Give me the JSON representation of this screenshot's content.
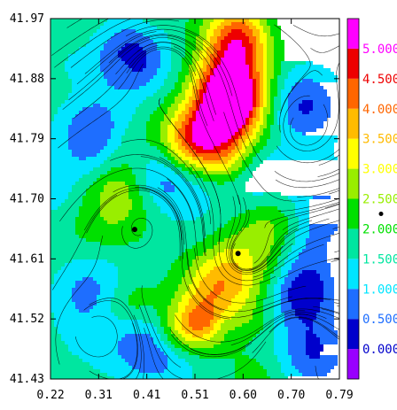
{
  "chart_data": {
    "type": "heatmap",
    "title": "",
    "xlabel": "",
    "ylabel": "",
    "xlim": [
      0.22,
      0.79
    ],
    "ylim": [
      41.43,
      41.97
    ],
    "x_ticks": [
      "0.22",
      "0.31",
      "0.41",
      "0.51",
      "0.60",
      "0.70",
      "0.79"
    ],
    "y_ticks": [
      "41.97",
      "41.88",
      "41.79",
      "41.70",
      "41.61",
      "41.52",
      "41.43"
    ],
    "overlay": "streamlines",
    "colorbar": {
      "range": [
        -0.5,
        5.5
      ],
      "labels": [
        "0.000",
        "0.500",
        "1.000",
        "1.500",
        "2.000",
        "2.500",
        "3.000",
        "3.500",
        "4.000",
        "4.500",
        "5.000"
      ],
      "label_values": [
        0,
        0.5,
        1,
        1.5,
        2,
        2.5,
        3,
        3.5,
        4,
        4.5,
        5
      ],
      "bins": [
        {
          "from": -0.5,
          "to": 0.0,
          "color": "#9900ff"
        },
        {
          "from": 0.0,
          "to": 0.5,
          "color": "#0000cc"
        },
        {
          "from": 0.5,
          "to": 1.0,
          "color": "#1e6eff"
        },
        {
          "from": 1.0,
          "to": 1.5,
          "color": "#00e5ff"
        },
        {
          "from": 1.5,
          "to": 2.0,
          "color": "#00e6a0"
        },
        {
          "from": 2.0,
          "to": 2.5,
          "color": "#00e000"
        },
        {
          "from": 2.5,
          "to": 3.0,
          "color": "#99ee00"
        },
        {
          "from": 3.0,
          "to": 3.5,
          "color": "#ffff00"
        },
        {
          "from": 3.5,
          "to": 4.0,
          "color": "#ffbb00"
        },
        {
          "from": 4.0,
          "to": 4.5,
          "color": "#ff6600"
        },
        {
          "from": 4.5,
          "to": 5.0,
          "color": "#ee0000"
        },
        {
          "from": 5.0,
          "to": 5.5,
          "color": "#ff00ff"
        }
      ],
      "marker_value": 2.25
    },
    "field_features": [
      {
        "kind": "high",
        "x": 0.58,
        "y": 41.84,
        "value": 4.8
      },
      {
        "kind": "high",
        "x": 0.595,
        "y": 41.94,
        "value": 4.6
      },
      {
        "kind": "high",
        "x": 0.515,
        "y": 41.79,
        "value": 4.5
      },
      {
        "kind": "high",
        "x": 0.57,
        "y": 41.87,
        "value": 4.3
      },
      {
        "kind": "high",
        "x": 0.55,
        "y": 41.58,
        "value": 4.2
      },
      {
        "kind": "high",
        "x": 0.6,
        "y": 41.6,
        "value": 3.7
      },
      {
        "kind": "high",
        "x": 0.505,
        "y": 41.51,
        "value": 3.6
      },
      {
        "kind": "high",
        "x": 0.655,
        "y": 41.66,
        "value": 2.8
      },
      {
        "kind": "low",
        "x": 0.38,
        "y": 41.91,
        "value": 0.2
      },
      {
        "kind": "low",
        "x": 0.72,
        "y": 41.84,
        "value": 0.4
      },
      {
        "kind": "low",
        "x": 0.31,
        "y": 41.8,
        "value": 0.6
      },
      {
        "kind": "low",
        "x": 0.3,
        "y": 41.56,
        "value": 0.7
      },
      {
        "kind": "low",
        "x": 0.7,
        "y": 41.56,
        "value": 0.6
      },
      {
        "kind": "low",
        "x": 0.74,
        "y": 41.47,
        "value": 0.5
      },
      {
        "kind": "low",
        "x": 0.42,
        "y": 41.47,
        "value": 0.8
      },
      {
        "kind": "low",
        "x": 0.45,
        "y": 41.72,
        "value": 1.2
      },
      {
        "kind": "low",
        "x": 0.63,
        "y": 41.73,
        "value": 0.9
      },
      {
        "kind": "low",
        "x": 0.26,
        "y": 41.7,
        "value": 1.0
      },
      {
        "kind": "low",
        "x": 0.77,
        "y": 41.7,
        "value": 0.8
      }
    ],
    "markers": [
      {
        "x": 0.386,
        "y": 41.654
      },
      {
        "x": 0.59,
        "y": 41.618
      }
    ]
  }
}
